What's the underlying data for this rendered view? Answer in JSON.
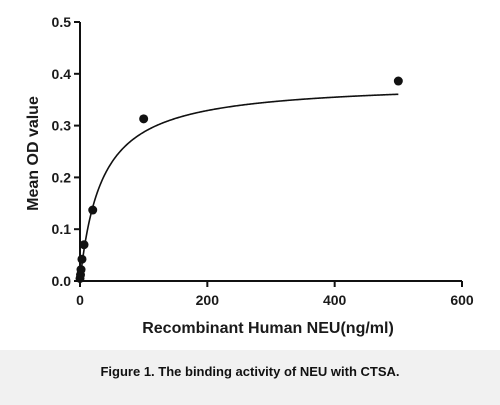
{
  "chart_data": {
    "type": "scatter",
    "xlabel": "Recombinant Human NEU(ng/ml)",
    "ylabel": "Mean OD value",
    "xlim": [
      0,
      600
    ],
    "ylim": [
      0,
      0.5
    ],
    "x_ticks": [
      0,
      200,
      400,
      600
    ],
    "y_ticks": [
      0.0,
      0.1,
      0.2,
      0.3,
      0.4,
      0.5
    ],
    "x_tick_labels": [
      "0",
      "200",
      "400",
      "600"
    ],
    "y_tick_labels": [
      "0.0",
      "0.1",
      "0.2",
      "0.3",
      "0.4",
      "0.5"
    ],
    "grid": false,
    "legend": "none",
    "series": [
      {
        "points": [
          {
            "x": 0,
            "y": 0.005
          },
          {
            "x": 0.8,
            "y": 0.012
          },
          {
            "x": 1.6,
            "y": 0.022
          },
          {
            "x": 3.1,
            "y": 0.042
          },
          {
            "x": 6.3,
            "y": 0.07
          },
          {
            "x": 20,
            "y": 0.137
          },
          {
            "x": 100,
            "y": 0.313
          },
          {
            "x": 500,
            "y": 0.386
          }
        ],
        "fit_curve": {
          "model": "one-site binding",
          "bmax": 0.385,
          "kd": 34
        }
      }
    ],
    "colors": {
      "points": "#111111",
      "line": "#111111",
      "axis": "#111111"
    }
  },
  "caption": "Figure 1. The binding activity of NEU with CTSA."
}
